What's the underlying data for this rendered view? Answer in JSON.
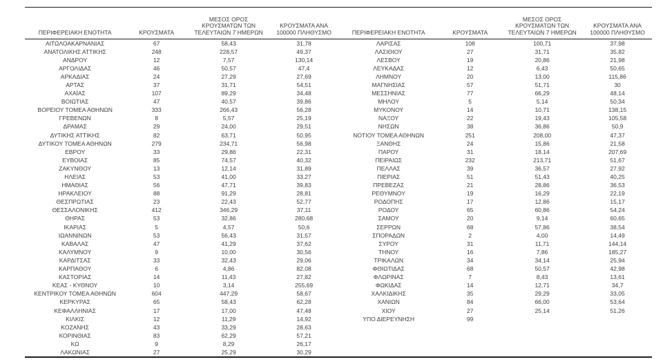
{
  "colors": {
    "background": "#ffffff",
    "text": "#3d3d3d",
    "rule_line": "#1c1c1c"
  },
  "headers": {
    "region": "ΠΕΡΙΦΕΡΕΙΑΚΗ ΕΝΟΤΗΤΑ",
    "cases": "ΚΡΟΥΣΜΑΤΑ",
    "avg_7day": "ΜΕΣΟΣ ΟΡΟΣ ΚΡΟΥΣΜΑΤΩΝ ΤΩΝ ΤΕΛΕΥΤΑΙΩΝ 7 ΗΜΕΡΩΝ",
    "per_100k": "ΚΡΟΥΣΜΑΤΑ ΑΝΑ 100000 ΠΛΗΘΥΣΜΟ"
  },
  "left_table": {
    "rows": [
      {
        "region": "ΑΙΤΩΛΟΑΚΑΡΝΑΝΙΑΣ",
        "cases": "67",
        "avg_7day": "58,43",
        "per_100k": "31,78"
      },
      {
        "region": "ΑΝΑΤΟΛΙΚΗΣ ΑΤΤΙΚΗΣ",
        "cases": "248",
        "avg_7day": "228,57",
        "per_100k": "49,37"
      },
      {
        "region": "ΑΝΔΡΟΥ",
        "cases": "12",
        "avg_7day": "7,57",
        "per_100k": "130,14"
      },
      {
        "region": "ΑΡΓΟΛΙΔΑΣ",
        "cases": "46",
        "avg_7day": "50,57",
        "per_100k": "47,4"
      },
      {
        "region": "ΑΡΚΑΔΙΑΣ",
        "cases": "24",
        "avg_7day": "27,29",
        "per_100k": "27,69"
      },
      {
        "region": "ΑΡΤΑΣ",
        "cases": "37",
        "avg_7day": "31,71",
        "per_100k": "54,51"
      },
      {
        "region": "ΑΧΑΪΑΣ",
        "cases": "107",
        "avg_7day": "89,29",
        "per_100k": "34,48"
      },
      {
        "region": "ΒΟΙΩΤΙΑΣ",
        "cases": "47",
        "avg_7day": "40,57",
        "per_100k": "39,86"
      },
      {
        "region": "ΒΟΡΕΙΟΥ ΤΟΜΕΑ ΑΘΗΝΩΝ",
        "cases": "333",
        "avg_7day": "266,43",
        "per_100k": "56,28"
      },
      {
        "region": "ΓΡΕΒΕΝΩΝ",
        "cases": "8",
        "avg_7day": "5,57",
        "per_100k": "25,19"
      },
      {
        "region": "ΔΡΑΜΑΣ",
        "cases": "29",
        "avg_7day": "24,00",
        "per_100k": "29,51"
      },
      {
        "region": "ΔΥΤΙΚΗΣ ΑΤΤΙΚΗΣ",
        "cases": "82",
        "avg_7day": "63,71",
        "per_100k": "50,95"
      },
      {
        "region": "ΔΥΤΙΚΟΥ ΤΟΜΕΑ ΑΘΗΝΩΝ",
        "cases": "279",
        "avg_7day": "234,71",
        "per_100k": "56,98"
      },
      {
        "region": "ΕΒΡΟΥ",
        "cases": "33",
        "avg_7day": "29,86",
        "per_100k": "22,31"
      },
      {
        "region": "ΕΥΒΟΙΑΣ",
        "cases": "85",
        "avg_7day": "74,57",
        "per_100k": "40,32"
      },
      {
        "region": "ΖΑΚΥΝΘΟΥ",
        "cases": "13",
        "avg_7day": "12,14",
        "per_100k": "31,89"
      },
      {
        "region": "ΗΛΕΙΑΣ",
        "cases": "53",
        "avg_7day": "41,00",
        "per_100k": "33,27"
      },
      {
        "region": "ΗΜΑΘΙΑΣ",
        "cases": "56",
        "avg_7day": "47,71",
        "per_100k": "39,83"
      },
      {
        "region": "ΗΡΑΚΛΕΙΟΥ",
        "cases": "88",
        "avg_7day": "91,29",
        "per_100k": "28,81"
      },
      {
        "region": "ΘΕΣΠΡΩΤΙΑΣ",
        "cases": "23",
        "avg_7day": "22,43",
        "per_100k": "52,77"
      },
      {
        "region": "ΘΕΣΣΑΛΟΝΙΚΗΣ",
        "cases": "412",
        "avg_7day": "346,29",
        "per_100k": "37,11"
      },
      {
        "region": "ΘΗΡΑΣ",
        "cases": "53",
        "avg_7day": "32,86",
        "per_100k": "280,68"
      },
      {
        "region": "ΙΚΑΡΙΑΣ",
        "cases": "5",
        "avg_7day": "4,57",
        "per_100k": "50,6"
      },
      {
        "region": "ΙΩΑΝΝΙΝΩΝ",
        "cases": "53",
        "avg_7day": "56,43",
        "per_100k": "31,57"
      },
      {
        "region": "ΚΑΒΑΛΑΣ",
        "cases": "47",
        "avg_7day": "41,29",
        "per_100k": "37,62"
      },
      {
        "region": "ΚΑΛΥΜΝΟΥ",
        "cases": "9",
        "avg_7day": "10,00",
        "per_100k": "30,56"
      },
      {
        "region": "ΚΑΡΔΙΤΣΑΣ",
        "cases": "33",
        "avg_7day": "32,43",
        "per_100k": "29,06"
      },
      {
        "region": "ΚΑΡΠΑΘΟΥ",
        "cases": "6",
        "avg_7day": "4,86",
        "per_100k": "82,08"
      },
      {
        "region": "ΚΑΣΤΟΡΙΑΣ",
        "cases": "14",
        "avg_7day": "11,43",
        "per_100k": "27,82"
      },
      {
        "region": "ΚΕΑΣ - ΚΥΘΝΟΥ",
        "cases": "10",
        "avg_7day": "3,14",
        "per_100k": "255,69"
      },
      {
        "region": "ΚΕΝΤΡΙΚΟΥ ΤΟΜΕΑ ΑΘΗΝΩΝ",
        "cases": "604",
        "avg_7day": "447,29",
        "per_100k": "58,67"
      },
      {
        "region": "ΚΕΡΚΥΡΑΣ",
        "cases": "65",
        "avg_7day": "58,43",
        "per_100k": "62,28"
      },
      {
        "region": "ΚΕΦΑΛΛΗΝΙΑΣ",
        "cases": "17",
        "avg_7day": "17,00",
        "per_100k": "47,48"
      },
      {
        "region": "ΚΙΛΚΙΣ",
        "cases": "12",
        "avg_7day": "11,29",
        "per_100k": "14,92"
      },
      {
        "region": "ΚΟΖΑΝΗΣ",
        "cases": "43",
        "avg_7day": "33,29",
        "per_100k": "28,63"
      },
      {
        "region": "ΚΟΡΙΝΘΙΑΣ",
        "cases": "83",
        "avg_7day": "62,29",
        "per_100k": "57,21"
      },
      {
        "region": "ΚΩ",
        "cases": "9",
        "avg_7day": "8,29",
        "per_100k": "26,17"
      },
      {
        "region": "ΛΑΚΩΝΙΑΣ",
        "cases": "27",
        "avg_7day": "25,29",
        "per_100k": "30,29"
      }
    ]
  },
  "right_table": {
    "rows": [
      {
        "region": "ΛΑΡΙΣΑΣ",
        "cases": "108",
        "avg_7day": "100,71",
        "per_100k": "37,98"
      },
      {
        "region": "ΛΑΣΙΘΙΟΥ",
        "cases": "27",
        "avg_7day": "31,71",
        "per_100k": "35,82"
      },
      {
        "region": "ΛΕΣΒΟΥ",
        "cases": "19",
        "avg_7day": "20,86",
        "per_100k": "21,98"
      },
      {
        "region": "ΛΕΥΚΑΔΑΣ",
        "cases": "12",
        "avg_7day": "6,43",
        "per_100k": "50,65"
      },
      {
        "region": "ΛΗΜΝΟΥ",
        "cases": "20",
        "avg_7day": "13,00",
        "per_100k": "115,86"
      },
      {
        "region": "ΜΑΓΝΗΣΙΑΣ",
        "cases": "57",
        "avg_7day": "51,71",
        "per_100k": "30"
      },
      {
        "region": "ΜΕΣΣΗΝΙΑΣ",
        "cases": "77",
        "avg_7day": "66,29",
        "per_100k": "48,14"
      },
      {
        "region": "ΜΗΛΟΥ",
        "cases": "5",
        "avg_7day": "5,14",
        "per_100k": "50,34"
      },
      {
        "region": "ΜΥΚΟΝΟΥ",
        "cases": "14",
        "avg_7day": "10,71",
        "per_100k": "138,15"
      },
      {
        "region": "ΝΑΞΟΥ",
        "cases": "22",
        "avg_7day": "19,43",
        "per_100k": "105,58"
      },
      {
        "region": "ΝΗΣΩΝ",
        "cases": "38",
        "avg_7day": "36,86",
        "per_100k": "50,9"
      },
      {
        "region": "ΝΟΤΙΟΥ ΤΟΜΕΑ ΑΘΗΝΩΝ",
        "cases": "251",
        "avg_7day": "208,00",
        "per_100k": "47,37"
      },
      {
        "region": "ΞΑΝΘΗΣ",
        "cases": "24",
        "avg_7day": "15,86",
        "per_100k": "21,58"
      },
      {
        "region": "ΠΑΡΟΥ",
        "cases": "31",
        "avg_7day": "18,14",
        "per_100k": "207,69"
      },
      {
        "region": "ΠΕΙΡΑΙΩΣ",
        "cases": "232",
        "avg_7day": "213,71",
        "per_100k": "51,67"
      },
      {
        "region": "ΠΕΛΛΑΣ",
        "cases": "39",
        "avg_7day": "36,57",
        "per_100k": "27,92"
      },
      {
        "region": "ΠΙΕΡΙΑΣ",
        "cases": "51",
        "avg_7day": "51,43",
        "per_100k": "40,25"
      },
      {
        "region": "ΠΡΕΒΕΖΑΣ",
        "cases": "21",
        "avg_7day": "28,86",
        "per_100k": "36,53"
      },
      {
        "region": "ΡΕΘΥΜΝΟΥ",
        "cases": "19",
        "avg_7day": "16,29",
        "per_100k": "22,19"
      },
      {
        "region": "ΡΟΔΟΠΗΣ",
        "cases": "17",
        "avg_7day": "12,86",
        "per_100k": "15,17"
      },
      {
        "region": "ΡΟΔΟΥ",
        "cases": "65",
        "avg_7day": "60,86",
        "per_100k": "54,24"
      },
      {
        "region": "ΣΑΜΟΥ",
        "cases": "20",
        "avg_7day": "9,14",
        "per_100k": "60,65"
      },
      {
        "region": "ΣΕΡΡΩΝ",
        "cases": "68",
        "avg_7day": "57,86",
        "per_100k": "38,54"
      },
      {
        "region": "ΣΠΟΡΑΔΩΝ",
        "cases": "2",
        "avg_7day": "4,00",
        "per_100k": "14,49"
      },
      {
        "region": "ΣΥΡΟΥ",
        "cases": "31",
        "avg_7day": "11,71",
        "per_100k": "144,14"
      },
      {
        "region": "ΤΗΝΟΥ",
        "cases": "16",
        "avg_7day": "7,86",
        "per_100k": "185,27"
      },
      {
        "region": "ΤΡΙΚΑΛΩΝ",
        "cases": "34",
        "avg_7day": "34,14",
        "per_100k": "25,94"
      },
      {
        "region": "ΦΘΙΩΤΙΔΑΣ",
        "cases": "68",
        "avg_7day": "50,57",
        "per_100k": "42,98"
      },
      {
        "region": "ΦΛΩΡΙΝΑΣ",
        "cases": "7",
        "avg_7day": "8,43",
        "per_100k": "13,61"
      },
      {
        "region": "ΦΩΚΙΔΑΣ",
        "cases": "14",
        "avg_7day": "12,71",
        "per_100k": "34,7"
      },
      {
        "region": "ΧΑΛΚΙΔΙΚΗΣ",
        "cases": "35",
        "avg_7day": "29,29",
        "per_100k": "33,05"
      },
      {
        "region": "ΧΑΝΙΩΝ",
        "cases": "84",
        "avg_7day": "66,00",
        "per_100k": "53,64"
      },
      {
        "region": "ΧΙΟΥ",
        "cases": "27",
        "avg_7day": "25,14",
        "per_100k": "51,26"
      },
      {
        "region": "ΥΠΟ ΔΙΕΡΕΥΝΗΣΗ",
        "cases": "99",
        "avg_7day": "",
        "per_100k": ""
      }
    ]
  }
}
